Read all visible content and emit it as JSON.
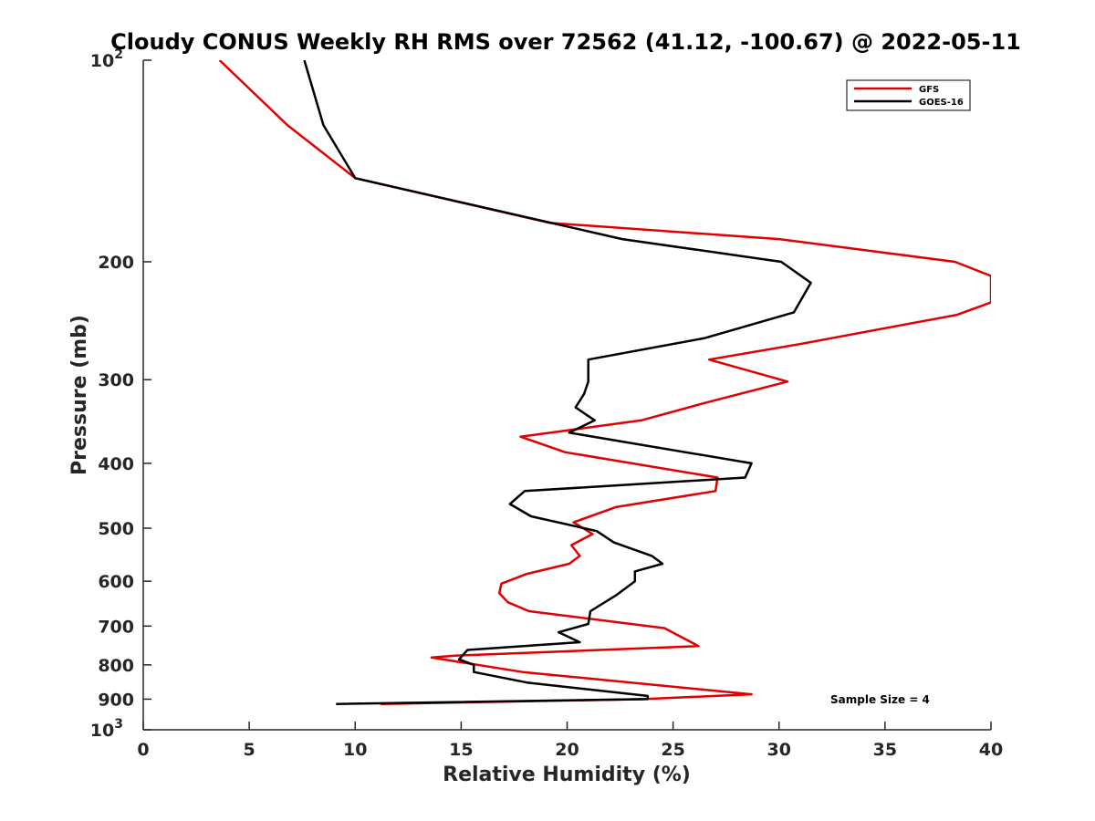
{
  "chart_data": {
    "type": "line",
    "title": "Cloudy CONUS Weekly RH RMS over 72562 (41.12, -100.67) @ 2022-05-11",
    "xlabel": "Relative Humidity (%)",
    "ylabel": "Pressure (mb)",
    "xlim": [
      0,
      40
    ],
    "ylim": [
      100,
      1000
    ],
    "y_scale": "log",
    "y_reversed": true,
    "x_ticks": [
      0,
      5,
      10,
      15,
      20,
      25,
      30,
      35,
      40
    ],
    "y_ticks": [
      100,
      200,
      300,
      400,
      500,
      600,
      700,
      800,
      900,
      1000
    ],
    "y_tick_labels": [
      "10^2",
      "200",
      "300",
      "400",
      "500",
      "600",
      "700",
      "800",
      "900",
      "10^3"
    ],
    "grid": false,
    "legend_position": "top-right",
    "annotation": "Sample Size = 4",
    "series": [
      {
        "name": "GFS",
        "color": "#e00000",
        "points": [
          [
            3.6,
            100
          ],
          [
            6.8,
            125
          ],
          [
            10.0,
            150
          ],
          [
            19.2,
            175
          ],
          [
            30.0,
            185
          ],
          [
            38.3,
            200
          ],
          [
            40.0,
            210
          ],
          [
            40.0,
            230
          ],
          [
            38.4,
            240
          ],
          [
            31.1,
            265
          ],
          [
            26.7,
            280
          ],
          [
            30.4,
            302
          ],
          [
            26.5,
            325
          ],
          [
            23.5,
            345
          ],
          [
            17.8,
            365
          ],
          [
            19.9,
            385
          ],
          [
            27.1,
            420
          ],
          [
            27.0,
            440
          ],
          [
            22.3,
            465
          ],
          [
            20.3,
            490
          ],
          [
            21.2,
            510
          ],
          [
            20.2,
            530
          ],
          [
            20.6,
            550
          ],
          [
            20.1,
            565
          ],
          [
            18.1,
            585
          ],
          [
            16.9,
            605
          ],
          [
            16.8,
            625
          ],
          [
            17.2,
            645
          ],
          [
            18.2,
            665
          ],
          [
            24.6,
            705
          ],
          [
            26.2,
            750
          ],
          [
            14.7,
            775
          ],
          [
            13.6,
            780
          ],
          [
            17.9,
            820
          ],
          [
            28.7,
            885
          ],
          [
            23.6,
            900
          ],
          [
            11.2,
            915
          ]
        ]
      },
      {
        "name": "GOES-16",
        "color": "#000000",
        "points": [
          [
            7.6,
            100
          ],
          [
            8.5,
            125
          ],
          [
            10.0,
            150
          ],
          [
            22.6,
            185
          ],
          [
            30.1,
            200
          ],
          [
            31.5,
            215
          ],
          [
            30.7,
            238
          ],
          [
            26.5,
            260
          ],
          [
            21.0,
            280
          ],
          [
            21.0,
            302
          ],
          [
            20.8,
            315
          ],
          [
            20.4,
            330
          ],
          [
            21.3,
            345
          ],
          [
            20.1,
            360
          ],
          [
            28.7,
            400
          ],
          [
            28.4,
            420
          ],
          [
            18.0,
            440
          ],
          [
            17.3,
            460
          ],
          [
            18.3,
            480
          ],
          [
            21.4,
            505
          ],
          [
            22.2,
            525
          ],
          [
            24.0,
            550
          ],
          [
            24.5,
            565
          ],
          [
            23.2,
            580
          ],
          [
            23.2,
            600
          ],
          [
            22.3,
            630
          ],
          [
            21.1,
            665
          ],
          [
            21.0,
            695
          ],
          [
            19.6,
            715
          ],
          [
            20.6,
            740
          ],
          [
            15.3,
            760
          ],
          [
            14.9,
            785
          ],
          [
            15.6,
            800
          ],
          [
            15.6,
            820
          ],
          [
            18.1,
            850
          ],
          [
            23.8,
            890
          ],
          [
            23.8,
            900
          ],
          [
            9.1,
            915
          ]
        ]
      }
    ]
  }
}
